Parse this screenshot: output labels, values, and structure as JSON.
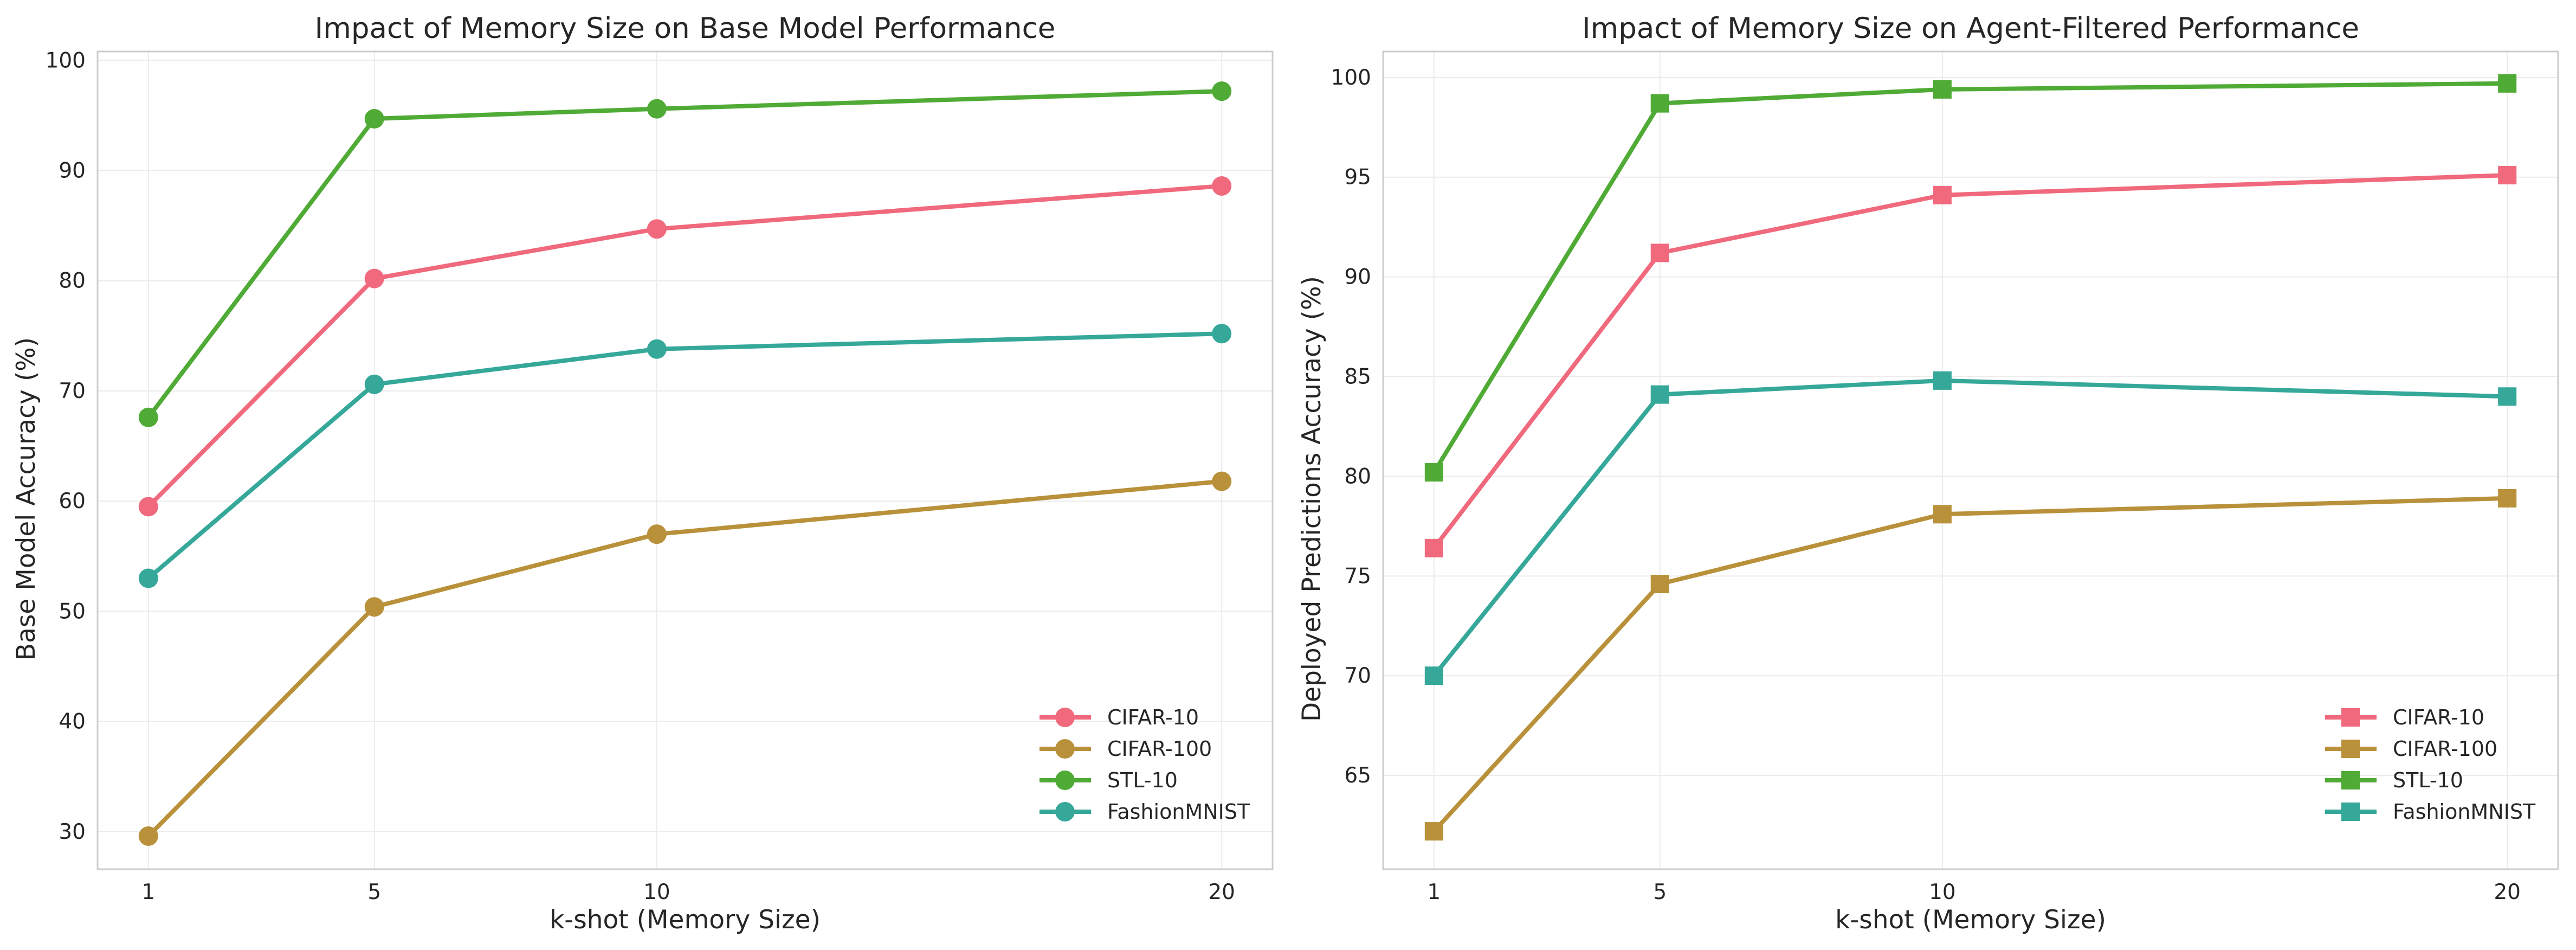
{
  "chart_data": [
    {
      "type": "line",
      "title": "Impact of Memory Size on Base Model Performance",
      "xlabel": "k-shot (Memory Size)",
      "ylabel": "Base Model Accuracy (%)",
      "x": [
        1,
        5,
        10,
        20
      ],
      "x_ticks": [
        "1",
        "5",
        "10",
        "20"
      ],
      "xlim": [
        0.1,
        20.9
      ],
      "ylim": [
        26.6,
        100.8
      ],
      "y_ticks": [
        "30",
        "40",
        "50",
        "60",
        "70",
        "80",
        "90",
        "100"
      ],
      "y_tick_values": [
        30,
        40,
        50,
        60,
        70,
        80,
        90,
        100
      ],
      "marker": "circle",
      "grid": true,
      "legend_position": "lower-right",
      "series": [
        {
          "name": "CIFAR-10",
          "color": "#f0697d",
          "values": [
            59.5,
            80.2,
            84.7,
            88.6
          ]
        },
        {
          "name": "CIFAR-100",
          "color": "#b8913a",
          "values": [
            29.6,
            50.4,
            57.0,
            61.8
          ]
        },
        {
          "name": "STL-10",
          "color": "#4fab35",
          "values": [
            67.6,
            94.7,
            95.6,
            97.2
          ]
        },
        {
          "name": "FashionMNIST",
          "color": "#35a89a",
          "values": [
            53.0,
            70.6,
            73.8,
            75.2
          ]
        }
      ]
    },
    {
      "type": "line",
      "title": "Impact of Memory Size on Agent-Filtered Performance",
      "xlabel": "k-shot (Memory Size)",
      "ylabel": "Deployed Predictions Accuracy (%)",
      "x": [
        1,
        5,
        10,
        20
      ],
      "x_ticks": [
        "1",
        "5",
        "10",
        "20"
      ],
      "xlim": [
        0.1,
        20.9
      ],
      "ylim": [
        60.3,
        101.3
      ],
      "y_ticks": [
        "65",
        "70",
        "75",
        "80",
        "85",
        "90",
        "95",
        "100"
      ],
      "y_tick_values": [
        65,
        70,
        75,
        80,
        85,
        90,
        95,
        100
      ],
      "marker": "square",
      "grid": true,
      "legend_position": "lower-right",
      "series": [
        {
          "name": "CIFAR-10",
          "color": "#f0697d",
          "values": [
            76.4,
            91.2,
            94.1,
            95.1
          ]
        },
        {
          "name": "CIFAR-100",
          "color": "#b8913a",
          "values": [
            62.2,
            74.6,
            78.1,
            78.9
          ]
        },
        {
          "name": "STL-10",
          "color": "#4fab35",
          "values": [
            80.2,
            98.7,
            99.4,
            99.7
          ]
        },
        {
          "name": "FashionMNIST",
          "color": "#35a89a",
          "values": [
            70.0,
            84.1,
            84.8,
            84.0
          ]
        }
      ]
    }
  ]
}
